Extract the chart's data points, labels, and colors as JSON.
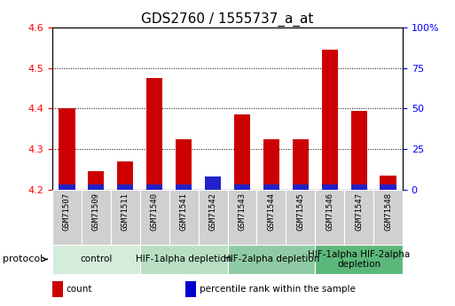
{
  "title": "GDS2760 / 1555737_a_at",
  "samples": [
    "GSM71507",
    "GSM71509",
    "GSM71511",
    "GSM71540",
    "GSM71541",
    "GSM71542",
    "GSM71543",
    "GSM71544",
    "GSM71545",
    "GSM71546",
    "GSM71547",
    "GSM71548"
  ],
  "red_values": [
    4.4,
    4.245,
    4.27,
    4.475,
    4.325,
    4.2,
    4.385,
    4.325,
    4.325,
    4.545,
    4.395,
    4.235
  ],
  "blue_percentile": [
    3,
    3,
    3,
    3,
    3,
    8,
    3,
    3,
    3,
    3,
    3,
    3
  ],
  "base_value": 4.2,
  "ylim_left": [
    4.2,
    4.6
  ],
  "ylim_right": [
    0,
    100
  ],
  "yticks_left": [
    4.2,
    4.3,
    4.4,
    4.5,
    4.6
  ],
  "yticks_right": [
    0,
    25,
    50,
    75,
    100
  ],
  "ytick_labels_right": [
    "0",
    "25",
    "50",
    "75",
    "100%"
  ],
  "groups": [
    {
      "label": "control",
      "start": 0,
      "end": 3,
      "color": "#d4edda"
    },
    {
      "label": "HIF-1alpha depletion",
      "start": 3,
      "end": 6,
      "color": "#b8dfc4"
    },
    {
      "label": "HIF-2alpha depletion",
      "start": 6,
      "end": 9,
      "color": "#8ecba4"
    },
    {
      "label": "HIF-1alpha HIF-2alpha\ndepletion",
      "start": 9,
      "end": 12,
      "color": "#5cb87a"
    }
  ],
  "protocol_label": "protocol",
  "legend_items": [
    {
      "color": "#cc0000",
      "label": "count"
    },
    {
      "color": "#0000cc",
      "label": "percentile rank within the sample"
    }
  ],
  "bar_width": 0.55,
  "red_color": "#cc0000",
  "blue_color": "#2222cc",
  "sample_box_color": "#d0d0d0",
  "plot_bg_color": "#ffffff",
  "title_fontsize": 11,
  "tick_fontsize": 8,
  "group_label_fontsize": 7.5
}
